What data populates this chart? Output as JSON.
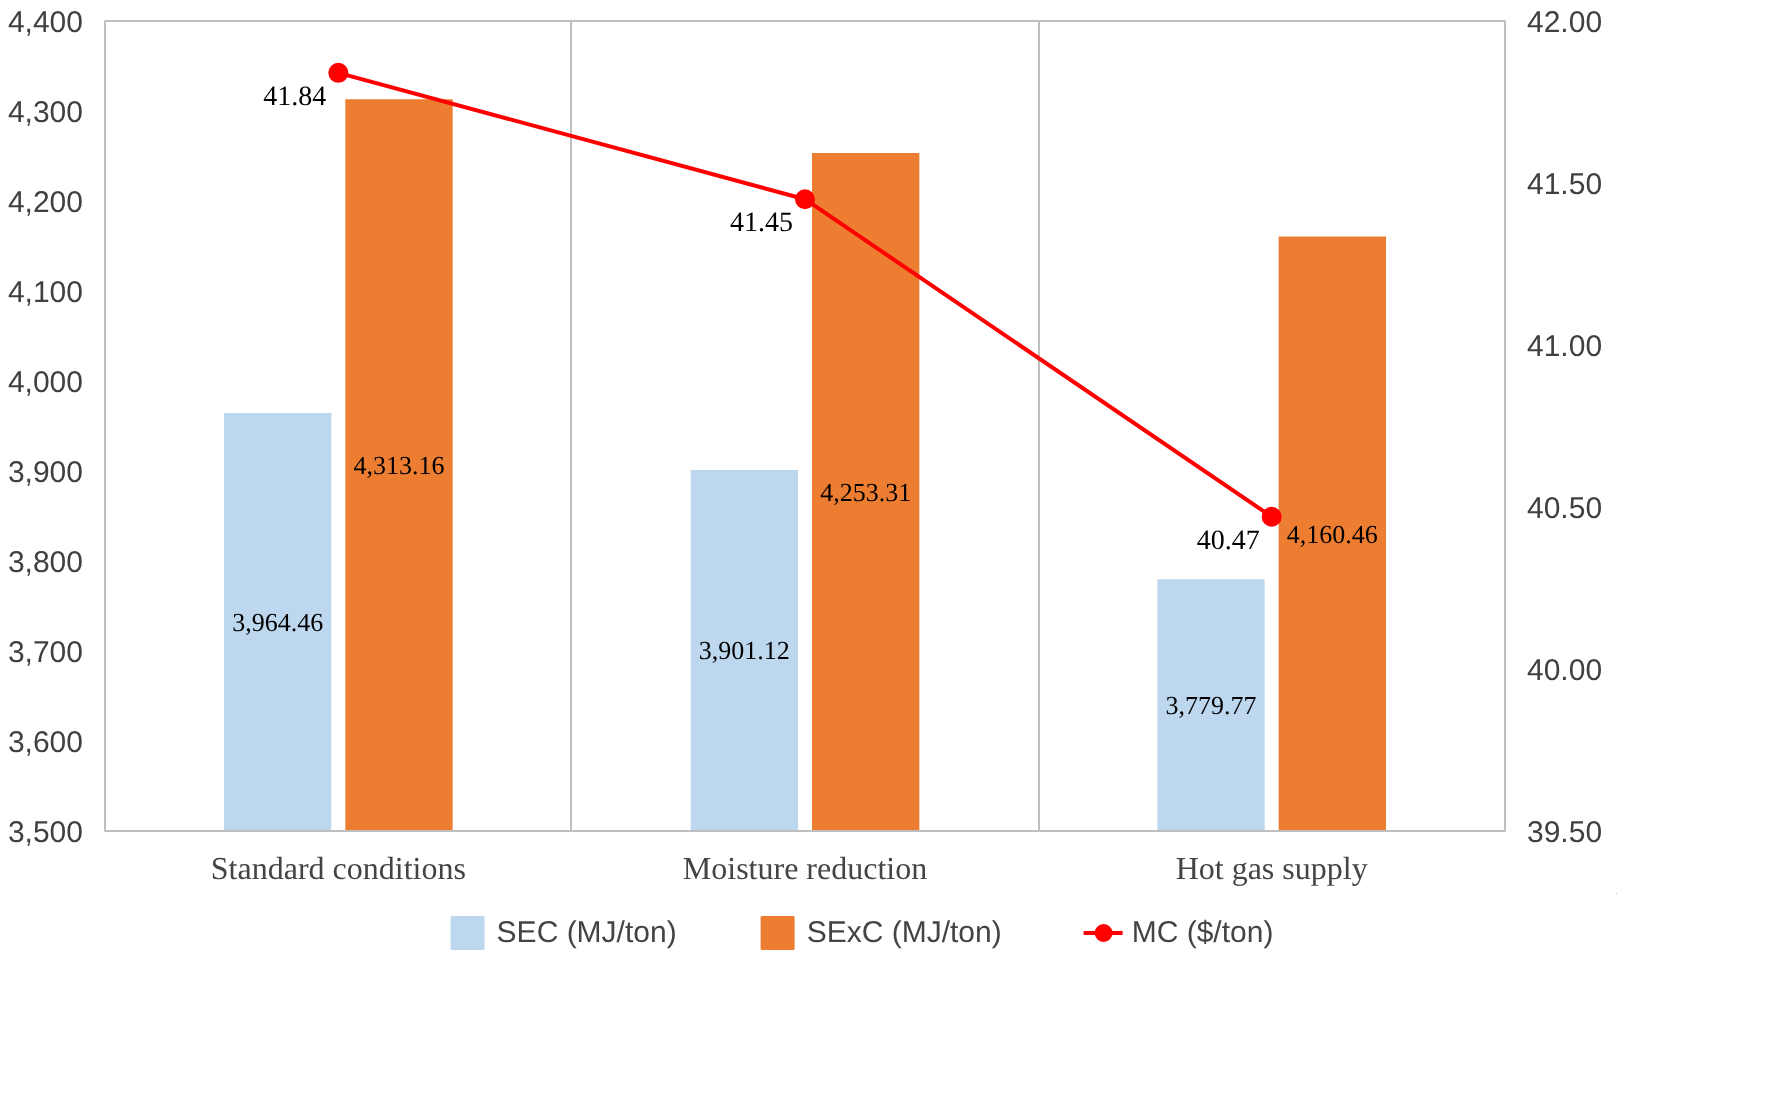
{
  "chart_data": {
    "type": "bar",
    "categories": [
      "Standard conditions",
      "Moisture reduction",
      "Hot gas supply"
    ],
    "series": [
      {
        "name": "SEC (MJ/ton)",
        "color": "#bdd7ee",
        "values": [
          3964.46,
          3901.12,
          3779.77
        ],
        "value_labels": [
          "3,964.46",
          "3,901.12",
          "3,779.77"
        ]
      },
      {
        "name": "SExC (MJ/ton)",
        "color": "#ed7d31",
        "values": [
          4313.16,
          4253.31,
          4160.46
        ],
        "value_labels": [
          "4,313.16",
          "4,253.31",
          "4,160.46"
        ]
      },
      {
        "name": "MC ($/ton)",
        "type": "line",
        "axis": "y2",
        "color": "#ff0000",
        "values": [
          41.84,
          41.45,
          40.47
        ]
      }
    ],
    "ylim": [
      3500,
      4400
    ],
    "yticks": [
      {
        "value": 3500,
        "label": "3,500"
      },
      {
        "value": 3600,
        "label": "3,600"
      },
      {
        "value": 3700,
        "label": "3,700"
      },
      {
        "value": 3800,
        "label": "3,800"
      },
      {
        "value": 3900,
        "label": "3,900"
      },
      {
        "value": 4000,
        "label": "4,000"
      },
      {
        "value": 4100,
        "label": "4,100"
      },
      {
        "value": 4200,
        "label": "4,200"
      },
      {
        "value": 4300,
        "label": "4,300"
      },
      {
        "value": 4400,
        "label": "4,400"
      }
    ],
    "y2lim": [
      39.5,
      42.0
    ],
    "y2ticks": [
      {
        "value": 39.5,
        "label": "39.50"
      },
      {
        "value": 40.0,
        "label": "40.00"
      },
      {
        "value": 40.5,
        "label": "40.50"
      },
      {
        "value": 41.0,
        "label": "41.00"
      },
      {
        "value": 41.5,
        "label": "41.50"
      },
      {
        "value": 42.0,
        "label": "42.00"
      }
    ],
    "data_labels": true,
    "grid": "x",
    "legend": "bottom",
    "marker": "circle",
    "line_style": "solid"
  }
}
